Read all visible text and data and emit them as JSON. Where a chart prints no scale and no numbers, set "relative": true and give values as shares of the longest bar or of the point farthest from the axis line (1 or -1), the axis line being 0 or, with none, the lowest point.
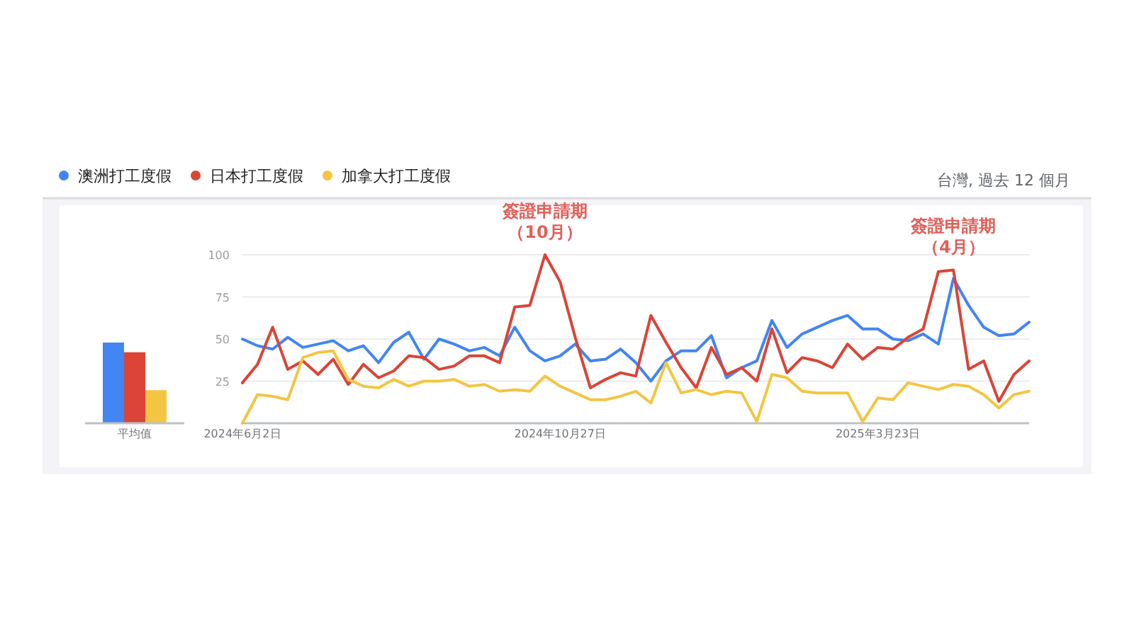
{
  "chart_data": [
    {
      "type": "bar",
      "relative": true,
      "categories": [
        "平均值"
      ],
      "series": [
        {
          "color": "#4285f4",
          "values": [
            1
          ]
        },
        {
          "color": "#db4437",
          "values": [
            0.88
          ]
        },
        {
          "color": "#f4c542",
          "values": [
            0.41
          ]
        }
      ]
    },
    {
      "type": "line",
      "x": [
        "2024-06-02",
        "2024-06-09",
        "2024-06-16",
        "2024-06-23",
        "2024-06-30",
        "2024-07-07",
        "2024-07-14",
        "2024-07-21",
        "2024-07-28",
        "2024-08-04",
        "2024-08-11",
        "2024-08-18",
        "2024-08-25",
        "2024-09-01",
        "2024-09-08",
        "2024-09-15",
        "2024-09-22",
        "2024-09-29",
        "2024-10-06",
        "2024-10-13",
        "2024-10-20",
        "2024-10-27",
        "2024-11-03",
        "2024-11-10",
        "2024-11-17",
        "2024-11-24",
        "2024-12-01",
        "2024-12-08",
        "2024-12-15",
        "2024-12-22",
        "2024-12-29",
        "2025-01-05",
        "2025-01-12",
        "2025-01-19",
        "2025-01-26",
        "2025-02-02",
        "2025-02-09",
        "2025-02-16",
        "2025-02-23",
        "2025-03-02",
        "2025-03-09",
        "2025-03-16",
        "2025-03-23",
        "2025-03-30",
        "2025-04-06",
        "2025-04-13",
        "2025-04-20",
        "2025-04-27",
        "2025-05-04",
        "2025-05-11",
        "2025-05-18",
        "2025-05-25",
        "2025-06-01"
      ],
      "series": [
        {
          "name": "澳洲打工度假",
          "color": "#4285f4",
          "values": [
            50,
            46,
            44,
            51,
            45,
            47,
            49,
            43,
            46,
            36,
            48,
            54,
            38,
            50,
            47,
            43,
            45,
            40,
            57,
            43,
            37,
            40,
            47,
            37,
            38,
            44,
            36,
            25,
            37,
            43,
            43,
            52,
            27,
            33,
            37,
            61,
            45,
            53,
            57,
            61,
            64,
            56,
            56,
            50,
            49,
            53,
            47,
            86,
            70,
            57,
            52,
            53,
            60
          ]
        },
        {
          "name": "日本打工度假",
          "color": "#db4437",
          "values": [
            24,
            35,
            57,
            32,
            37,
            29,
            38,
            23,
            35,
            27,
            31,
            40,
            39,
            32,
            34,
            40,
            40,
            36,
            69,
            70,
            100,
            84,
            51,
            21,
            26,
            30,
            28,
            64,
            48,
            33,
            21,
            45,
            29,
            33,
            25,
            56,
            30,
            39,
            37,
            33,
            47,
            38,
            45,
            44,
            51,
            56,
            90,
            91,
            32,
            37,
            13,
            29,
            37
          ]
        },
        {
          "name": "加拿大打工度假",
          "color": "#f4c542",
          "values": [
            0,
            17,
            16,
            14,
            39,
            42,
            43,
            26,
            22,
            21,
            26,
            22,
            25,
            25,
            26,
            22,
            23,
            19,
            20,
            19,
            28,
            22,
            18,
            14,
            14,
            16,
            19,
            12,
            36,
            18,
            20,
            17,
            19,
            18,
            1,
            29,
            27,
            19,
            18,
            18,
            18,
            1,
            15,
            14,
            24,
            22,
            20,
            23,
            22,
            17,
            9,
            17,
            19
          ]
        }
      ],
      "xlim": [
        "2024-06-02",
        "2025-06-01"
      ],
      "xticks": [
        {
          "value": "2024-06-02",
          "label": "2024年6月2日"
        },
        {
          "value": "2024-10-27",
          "label": "2024年10月27日"
        },
        {
          "value": "2025-03-23",
          "label": "2025年3月23日"
        }
      ],
      "ylim": [
        0,
        100
      ],
      "yticks": [
        {
          "value": 0,
          "label": null
        },
        25,
        50,
        75,
        100
      ],
      "grid": "y",
      "legend": "top left",
      "annotations": [
        {
          "text": "簽證申請期（10月）",
          "x": "2024-10-20",
          "y": 100
        },
        {
          "text": "簽證申請期（4月）",
          "x": "2025-04-27",
          "y": 91
        },
        "台灣, 過去 12 個月"
      ]
    }
  ]
}
